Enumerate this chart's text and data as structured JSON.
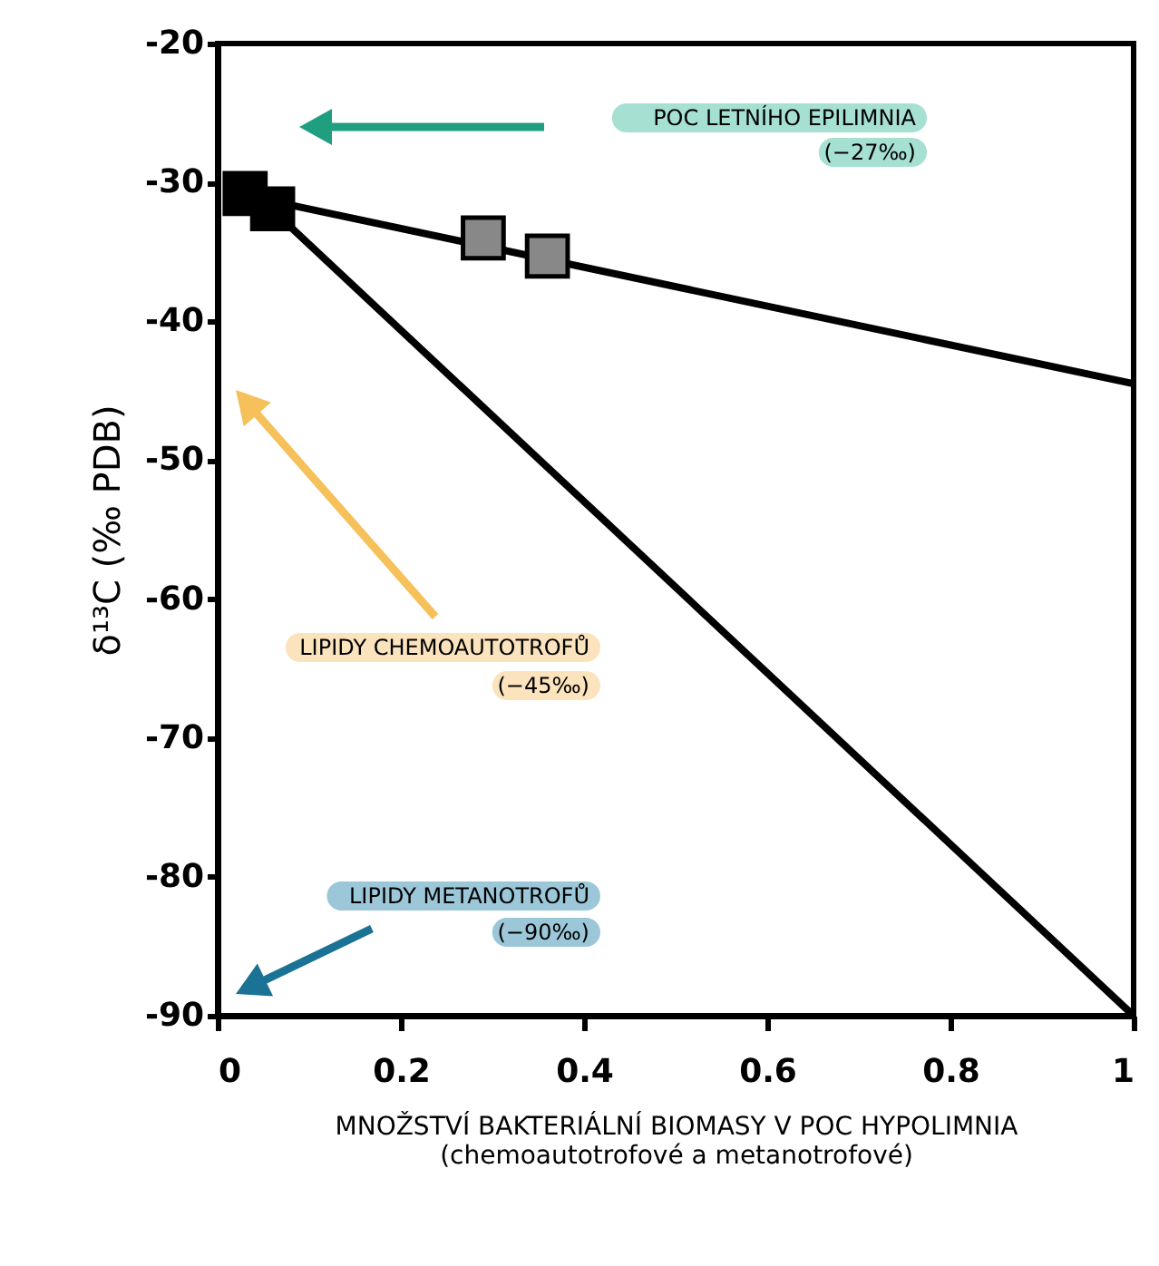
{
  "chart_data": {
    "type": "line",
    "xlabel": "MNOŽSTVÍ BAKTERIÁLNÍ BIOMASY V POC HYPOLIMNIA\n(chemoautotrofové a metanotrofové)",
    "ylabel": "δ¹³C (‰ PDB)",
    "xlim": [
      0,
      1
    ],
    "xticks": [
      0,
      0.2,
      0.4,
      0.6,
      0.8,
      1
    ],
    "ylim": [
      -90,
      -20
    ],
    "yticks": [
      -20,
      -30,
      -40,
      -50,
      -60,
      -70,
      -80,
      -90
    ],
    "grid": false,
    "series": [
      {
        "type": "line",
        "color": "#000000",
        "x": [
          0.02,
          1
        ],
        "values": [
          -30.8,
          -44.5
        ]
      },
      {
        "type": "line",
        "color": "#000000",
        "x": [
          0.06,
          1
        ],
        "values": [
          -32,
          -90
        ]
      },
      {
        "type": "scatter",
        "color": "#000000",
        "marker": "square",
        "x": [
          0.03,
          0.06
        ],
        "values": [
          -30.8,
          -31.9
        ]
      },
      {
        "type": "scatter",
        "color": "#888888",
        "marker": "square",
        "x": [
          0.29,
          0.36
        ],
        "values": [
          -34.0,
          -35.3
        ]
      }
    ],
    "annotations": [
      "POC LETNÍHO EPILIMNIA\n(−27‰)",
      "LIPIDY CHEMOAUTOTROFŮ\n(−45‰)",
      "LIPIDY METANOTROFŮ\n(−90‰)"
    ]
  }
}
